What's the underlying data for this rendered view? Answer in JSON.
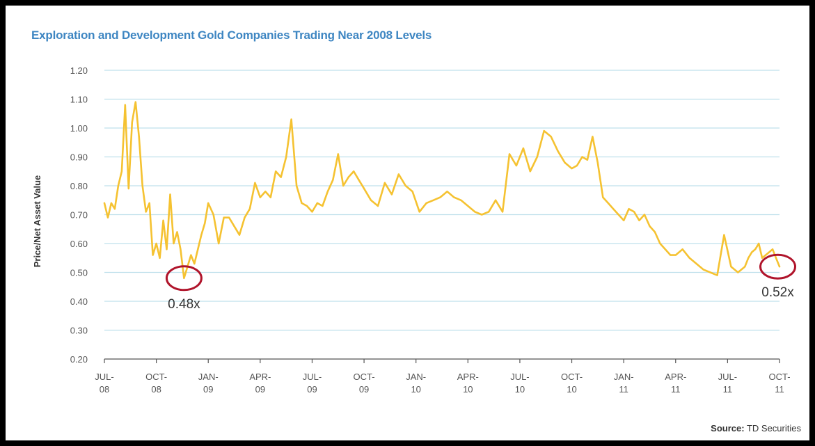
{
  "chart_data": {
    "type": "line",
    "title": "Exploration and Development Gold Companies Trading Near 2008 Levels",
    "ylabel": "Price/Net Asset Value",
    "xlabel": "",
    "ylim": [
      0.2,
      1.2
    ],
    "yticks": [
      "1.20",
      "1.10",
      "1.00",
      "0.90",
      "0.80",
      "0.70",
      "0.60",
      "0.50",
      "0.40",
      "0.30",
      "0.20"
    ],
    "xticks": [
      {
        "l1": "JUL-",
        "l2": "08"
      },
      {
        "l1": "OCT-",
        "l2": "08"
      },
      {
        "l1": "JAN-",
        "l2": "09"
      },
      {
        "l1": "APR-",
        "l2": "09"
      },
      {
        "l1": "JUL-",
        "l2": "09"
      },
      {
        "l1": "OCT-",
        "l2": "09"
      },
      {
        "l1": "JAN-",
        "l2": "10"
      },
      {
        "l1": "APR-",
        "l2": "10"
      },
      {
        "l1": "JUL-",
        "l2": "10"
      },
      {
        "l1": "OCT-",
        "l2": "10"
      },
      {
        "l1": "JAN-",
        "l2": "11"
      },
      {
        "l1": "APR-",
        "l2": "11"
      },
      {
        "l1": "JUL-",
        "l2": "11"
      },
      {
        "l1": "OCT-",
        "l2": "11"
      }
    ],
    "grid": true,
    "line_color": "#f5c231",
    "grid_color": "#bfe0ec",
    "annotations": [
      {
        "text": "0.48x",
        "x": 4.6,
        "y": 0.48
      },
      {
        "text": "0.52x",
        "x": 38.9,
        "y": 0.52
      }
    ],
    "x": [
      0,
      0.2,
      0.4,
      0.6,
      0.8,
      1.0,
      1.2,
      1.4,
      1.6,
      1.8,
      2.0,
      2.2,
      2.4,
      2.6,
      2.8,
      3.0,
      3.2,
      3.4,
      3.6,
      3.8,
      4.0,
      4.2,
      4.4,
      4.6,
      4.8,
      5.0,
      5.2,
      5.4,
      5.6,
      5.8,
      6.0,
      6.3,
      6.6,
      6.9,
      7.2,
      7.5,
      7.8,
      8.1,
      8.4,
      8.7,
      9.0,
      9.3,
      9.6,
      9.9,
      10.2,
      10.5,
      10.8,
      11.1,
      11.4,
      11.7,
      12.0,
      12.3,
      12.6,
      12.9,
      13.2,
      13.5,
      13.8,
      14.1,
      14.4,
      14.7,
      15.0,
      15.4,
      15.8,
      16.2,
      16.6,
      17.0,
      17.4,
      17.8,
      18.2,
      18.6,
      19.0,
      19.4,
      19.8,
      20.2,
      20.6,
      21.0,
      21.4,
      21.8,
      22.2,
      22.6,
      23.0,
      23.4,
      23.8,
      24.2,
      24.6,
      25.0,
      25.4,
      25.8,
      26.2,
      26.6,
      27.0,
      27.3,
      27.6,
      27.9,
      28.2,
      28.5,
      28.8,
      29.1,
      29.4,
      29.7,
      30.0,
      30.3,
      30.6,
      30.9,
      31.2,
      31.5,
      31.8,
      32.1,
      32.4,
      32.7,
      33.0,
      33.4,
      33.8,
      34.2,
      34.6,
      35.0,
      35.4,
      35.8,
      36.2,
      36.6,
      37.0,
      37.2,
      37.4,
      37.6,
      37.8,
      38.0,
      38.2,
      38.4,
      38.6,
      38.8,
      39.0
    ],
    "series": [
      {
        "values": [
          0.74,
          0.69,
          0.74,
          0.72,
          0.8,
          0.85,
          1.08,
          0.79,
          1.02,
          1.09,
          0.97,
          0.8,
          0.71,
          0.74,
          0.56,
          0.6,
          0.55,
          0.68,
          0.58,
          0.77,
          0.6,
          0.64,
          0.58,
          0.48,
          0.52,
          0.56,
          0.53,
          0.58,
          0.63,
          0.67,
          0.74,
          0.7,
          0.6,
          0.69,
          0.69,
          0.66,
          0.63,
          0.69,
          0.72,
          0.81,
          0.76,
          0.78,
          0.76,
          0.85,
          0.83,
          0.9,
          1.03,
          0.8,
          0.74,
          0.73,
          0.71,
          0.74,
          0.73,
          0.78,
          0.82,
          0.91,
          0.8,
          0.83,
          0.85,
          0.82,
          0.79,
          0.75,
          0.73,
          0.81,
          0.77,
          0.84,
          0.8,
          0.78,
          0.71,
          0.74,
          0.75,
          0.76,
          0.78,
          0.76,
          0.75,
          0.73,
          0.71,
          0.7,
          0.71,
          0.75,
          0.71,
          0.91,
          0.87,
          0.93,
          0.85,
          0.9,
          0.99,
          0.97,
          0.92,
          0.88,
          0.86,
          0.87,
          0.9,
          0.89,
          0.97,
          0.88,
          0.76,
          0.74,
          0.72,
          0.7,
          0.68,
          0.72,
          0.71,
          0.68,
          0.7,
          0.66,
          0.64,
          0.6,
          0.58,
          0.56,
          0.56,
          0.58,
          0.55,
          0.53,
          0.51,
          0.5,
          0.49,
          0.63,
          0.52,
          0.5,
          0.52,
          0.55,
          0.57,
          0.58,
          0.6,
          0.55,
          0.56,
          0.57,
          0.58,
          0.55,
          0.52
        ]
      }
    ]
  },
  "source": {
    "label": "Source:",
    "value": "TD Securities"
  }
}
